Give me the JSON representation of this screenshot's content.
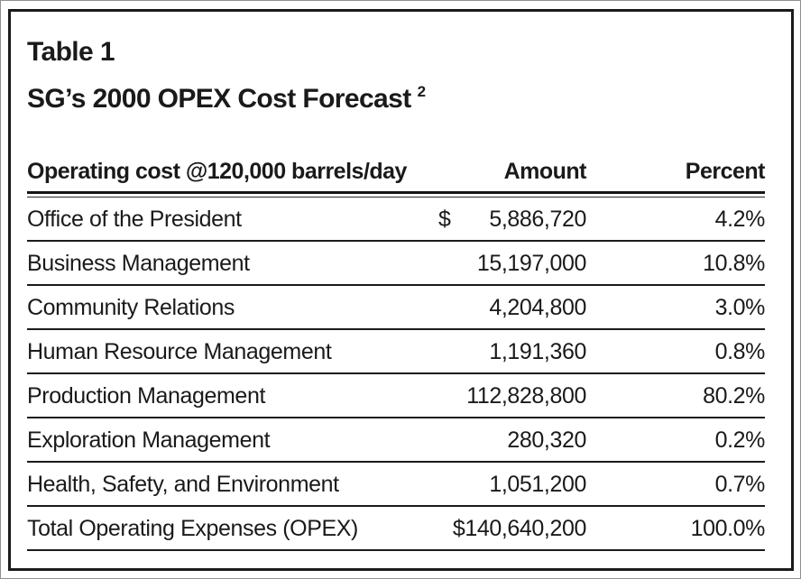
{
  "header": {
    "table_label": "Table 1",
    "title": "SG’s 2000 OPEX Cost Forecast",
    "footnote_marker": "2"
  },
  "table": {
    "columns": {
      "label": "Operating cost @120,000 barrels/day",
      "amount": "Amount",
      "percent": "Percent"
    },
    "rows": [
      {
        "label": "Office of the President",
        "currency": "$",
        "amount": "5,886,720",
        "percent": "4.2%"
      },
      {
        "label": "Business Management",
        "currency": "",
        "amount": "15,197,000",
        "percent": "10.8%"
      },
      {
        "label": "Community Relations",
        "currency": "",
        "amount": "4,204,800",
        "percent": "3.0%"
      },
      {
        "label": "Human Resource Management",
        "currency": "",
        "amount": "1,191,360",
        "percent": "0.8%"
      },
      {
        "label": "Production Management",
        "currency": "",
        "amount": "112,828,800",
        "percent": "80.2%"
      },
      {
        "label": "Exploration Management",
        "currency": "",
        "amount": "280,320",
        "percent": "0.2%"
      },
      {
        "label": "Health, Safety, and Environment",
        "currency": "",
        "amount": "1,051,200",
        "percent": "0.7%"
      }
    ],
    "total": {
      "label": "Total Operating Expenses (OPEX)",
      "currency": "",
      "amount": "$140,640,200",
      "percent": "100.0%"
    }
  },
  "chart_data": {
    "type": "table",
    "title": "Table 1 — SG's 2000 OPEX Cost Forecast",
    "columns": [
      "Operating cost @120,000 barrels/day",
      "Amount",
      "Percent"
    ],
    "rows": [
      [
        "Office of the President",
        5886720,
        4.2
      ],
      [
        "Business Management",
        15197000,
        10.8
      ],
      [
        "Community Relations",
        4204800,
        3.0
      ],
      [
        "Human Resource Management",
        1191360,
        0.8
      ],
      [
        "Production Management",
        112828800,
        80.2
      ],
      [
        "Exploration Management",
        280320,
        0.2
      ],
      [
        "Health, Safety, and Environment",
        1051200,
        0.7
      ]
    ],
    "total": [
      "Total Operating Expenses (OPEX)",
      140640200,
      100.0
    ]
  },
  "colors": {
    "text": "#1a1a1a",
    "rule": "#1b1b1b",
    "background": "#ffffff"
  }
}
